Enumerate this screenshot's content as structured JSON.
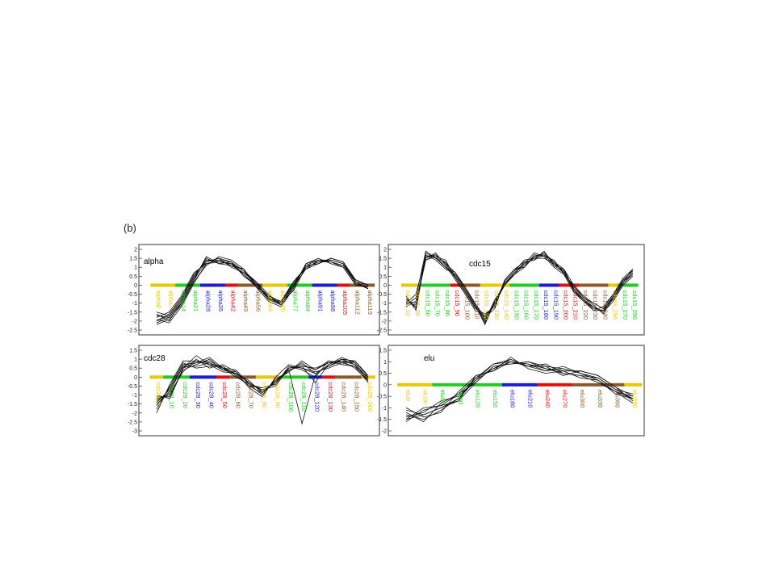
{
  "figure_label": "(b)",
  "chart_data": [
    {
      "type": "line",
      "title": "alpha",
      "ylim": [
        -2.5,
        2
      ],
      "yticks": [
        2,
        1.5,
        1,
        0.5,
        0,
        -0.5,
        -1,
        -1.5,
        -2,
        -2.5
      ],
      "categories": [
        "alpha0",
        "alpha7",
        "alpha14",
        "alpha21",
        "alpha28",
        "alpha35",
        "alpha42",
        "alpha49",
        "alpha56",
        "alpha63",
        "alpha70",
        "alpha77",
        "alpha84",
        "alpha91",
        "alpha98",
        "alpha105",
        "alpha112",
        "alpha119"
      ],
      "category_colors": [
        "#e8c800",
        "#e8c800",
        "#22cc22",
        "#22cc22",
        "#1c1cd0",
        "#1c1cd0",
        "#e01010",
        "#8b5a2b",
        "#8b5a2b",
        "#e8c800",
        "#e8c800",
        "#22cc22",
        "#22cc22",
        "#1c1cd0",
        "#1c1cd0",
        "#e01010",
        "#8b5a2b",
        "#8b5a2b"
      ],
      "series": [
        {
          "values": [
            -1.6,
            -2.0,
            -1.0,
            0.3,
            1.3,
            1.5,
            1.3,
            0.8,
            0.2,
            -0.7,
            -1.0,
            -0.3,
            1.0,
            1.3,
            1.4,
            1.2,
            0.1,
            -0.1
          ]
        },
        {
          "values": [
            -2.0,
            -1.7,
            -0.8,
            0.5,
            1.4,
            1.3,
            1.2,
            0.6,
            0.0,
            -0.8,
            -1.1,
            0.0,
            1.1,
            1.4,
            1.3,
            1.1,
            0.3,
            0.0
          ]
        },
        {
          "values": [
            -1.8,
            -1.5,
            -0.6,
            0.7,
            1.2,
            1.4,
            1.1,
            0.7,
            0.1,
            -0.6,
            -0.9,
            0.2,
            0.9,
            1.2,
            1.5,
            1.3,
            0.2,
            -0.2
          ]
        },
        {
          "values": [
            -2.2,
            -1.9,
            -1.1,
            0.2,
            1.1,
            1.6,
            1.4,
            0.9,
            -0.1,
            -0.9,
            -1.2,
            -0.2,
            1.2,
            1.5,
            1.2,
            1.0,
            0.0,
            -0.1
          ]
        },
        {
          "values": [
            -1.7,
            -1.8,
            -0.9,
            0.4,
            1.5,
            1.2,
            1.3,
            0.5,
            0.0,
            -0.7,
            -1.0,
            0.1,
            1.0,
            1.3,
            1.4,
            1.2,
            0.2,
            0.0
          ]
        },
        {
          "values": [
            -2.0,
            -1.6,
            -0.7,
            0.6,
            1.3,
            1.5,
            1.0,
            0.7,
            0.2,
            -0.5,
            -1.1,
            -0.1,
            0.9,
            1.4,
            1.3,
            1.1,
            0.1,
            -0.2
          ]
        },
        {
          "values": [
            -1.9,
            -2.1,
            -1.2,
            0.1,
            1.2,
            1.3,
            1.2,
            0.8,
            0.1,
            -0.8,
            -0.9,
            0.0,
            1.1,
            1.2,
            1.5,
            1.3,
            0.3,
            0.0
          ]
        },
        {
          "values": [
            -1.5,
            -1.7,
            -0.8,
            0.5,
            1.4,
            1.4,
            1.3,
            0.6,
            -0.1,
            -0.6,
            -1.0,
            0.2,
            1.0,
            1.3,
            1.3,
            1.0,
            0.0,
            -0.1
          ]
        },
        {
          "values": [
            -2.1,
            -1.8,
            -1.0,
            0.3,
            1.6,
            1.2,
            1.1,
            0.9,
            0.0,
            -0.7,
            -1.1,
            -0.1,
            1.2,
            1.4,
            1.4,
            1.2,
            0.2,
            -0.2
          ]
        }
      ]
    },
    {
      "type": "line",
      "title": "cdc15",
      "ylim": [
        -2.5,
        2
      ],
      "yticks": [
        2,
        1.5,
        1,
        0.5,
        0,
        -0.5,
        -1,
        -1.5,
        -2,
        -2.5
      ],
      "categories": [
        "cdc15_10",
        "cdc15_30",
        "cdc15_50",
        "cdc15_70",
        "cdc15_80",
        "cdc15_90",
        "cdc15_100",
        "cdc15_110",
        "cdc15_120",
        "cdc15_130",
        "cdc15_140",
        "cdc15_150",
        "cdc15_160",
        "cdc15_170",
        "cdc15_180",
        "cdc15_190",
        "cdc15_200",
        "cdc15_210",
        "cdc15_220",
        "cdc15_230",
        "cdc15_240",
        "cdc15_250",
        "cdc15_270",
        "cdc15_290"
      ],
      "category_colors": [
        "#e8c800",
        "#e8c800",
        "#22cc22",
        "#22cc22",
        "#22cc22",
        "#e01010",
        "#8b5a2b",
        "#8b5a2b",
        "#e8c800",
        "#e8c800",
        "#e8c800",
        "#22cc22",
        "#22cc22",
        "#22cc22",
        "#1c1cd0",
        "#1c1cd0",
        "#e01010",
        "#e01010",
        "#8b5a2b",
        "#8b5a2b",
        "#8b5a2b",
        "#e8c800",
        "#22cc22",
        "#22cc22"
      ],
      "series": [
        {
          "values": [
            -0.8,
            -1.2,
            1.8,
            1.5,
            1.0,
            0.5,
            -0.3,
            -1.2,
            -1.8,
            -1.0,
            0.2,
            0.8,
            1.2,
            1.5,
            1.8,
            1.2,
            0.8,
            -0.2,
            -0.8,
            -1.2,
            -1.5,
            -0.6,
            0.3,
            0.8
          ]
        },
        {
          "values": [
            -1.0,
            -0.5,
            1.6,
            1.7,
            1.2,
            0.7,
            -0.1,
            -1.0,
            -2.0,
            -0.8,
            0.0,
            0.6,
            1.0,
            1.7,
            1.6,
            1.4,
            0.6,
            0.0,
            -0.6,
            -1.0,
            -1.3,
            -0.8,
            0.1,
            0.6
          ]
        },
        {
          "values": [
            -1.2,
            -0.9,
            1.4,
            1.6,
            1.4,
            0.4,
            -0.4,
            -1.3,
            -1.6,
            -1.2,
            0.3,
            0.9,
            1.3,
            1.4,
            1.9,
            1.1,
            0.9,
            -0.3,
            -0.9,
            -1.4,
            -1.2,
            -0.5,
            0.4,
            0.9
          ]
        },
        {
          "values": [
            -0.6,
            -1.4,
            1.7,
            1.4,
            0.9,
            0.6,
            -0.2,
            -1.1,
            -2.2,
            -0.9,
            0.1,
            0.7,
            1.1,
            1.6,
            1.7,
            1.3,
            0.7,
            -0.1,
            -0.7,
            -1.1,
            -1.6,
            -0.7,
            0.2,
            0.7
          ]
        },
        {
          "values": [
            -0.9,
            -1.0,
            1.5,
            1.8,
            1.1,
            0.3,
            -0.5,
            -1.4,
            -1.7,
            -1.1,
            0.2,
            0.8,
            1.4,
            1.5,
            1.5,
            1.2,
            0.8,
            -0.2,
            -0.8,
            -1.3,
            -1.4,
            -0.6,
            0.3,
            0.8
          ]
        },
        {
          "values": [
            -1.1,
            -0.7,
            1.9,
            1.5,
            1.3,
            0.5,
            -0.3,
            -1.2,
            -1.9,
            -1.0,
            0.0,
            0.7,
            1.2,
            1.8,
            1.6,
            1.0,
            0.6,
            -0.4,
            -0.9,
            -1.2,
            -1.5,
            -0.9,
            0.0,
            0.5
          ]
        },
        {
          "values": [
            -0.7,
            -1.3,
            1.6,
            1.6,
            1.0,
            0.7,
            -0.2,
            -1.0,
            -1.8,
            -1.3,
            0.3,
            0.9,
            1.0,
            1.6,
            1.8,
            1.3,
            0.9,
            0.0,
            -0.7,
            -1.0,
            -1.3,
            -0.5,
            0.2,
            0.9
          ]
        },
        {
          "values": [
            -1.0,
            -1.1,
            1.4,
            1.7,
            1.2,
            0.4,
            -0.4,
            -1.1,
            -2.1,
            -0.9,
            0.1,
            0.6,
            1.3,
            1.4,
            1.7,
            1.1,
            0.7,
            -0.3,
            -0.8,
            -1.4,
            -1.4,
            -0.7,
            0.1,
            0.7
          ]
        }
      ]
    },
    {
      "type": "line",
      "title": "cdc28",
      "ylim": [
        -3,
        1.5
      ],
      "yticks": [
        1.5,
        1,
        0.5,
        0,
        -0.5,
        -1,
        -1.5,
        -2,
        -2.5,
        -3
      ],
      "categories": [
        "cdc28_0",
        "cdc28_10",
        "cdc28_20",
        "cdc28_30",
        "cdc28_40",
        "cdc28_50",
        "cdc28_60",
        "cdc28_70",
        "cdc28_80",
        "cdc28_90",
        "cdc28_100",
        "cdc28_110",
        "cdc28_120",
        "cdc28_130",
        "cdc28_140",
        "cdc28_150",
        "cdc28_160"
      ],
      "category_colors": [
        "#e8c800",
        "#22cc22",
        "#22cc22",
        "#1c1cd0",
        "#1c1cd0",
        "#e01010",
        "#8b5a2b",
        "#8b5a2b",
        "#e8c800",
        "#e8c800",
        "#22cc22",
        "#22cc22",
        "#1c1cd0",
        "#e01010",
        "#8b5a2b",
        "#8b5a2b",
        "#e8c800"
      ],
      "series": [
        {
          "values": [
            -1.5,
            -0.8,
            0.6,
            0.9,
            0.8,
            0.5,
            0.2,
            -0.3,
            -0.8,
            -0.3,
            0.5,
            0.6,
            0.5,
            0.8,
            0.9,
            0.7,
            -0.2
          ]
        },
        {
          "values": [
            -1.2,
            -1.0,
            0.4,
            0.7,
            1.0,
            0.4,
            0.3,
            -0.4,
            -1.0,
            -0.1,
            0.3,
            0.8,
            0.2,
            0.6,
            1.0,
            0.9,
            0.0
          ]
        },
        {
          "values": [
            -1.8,
            -0.5,
            0.8,
            0.5,
            0.6,
            0.6,
            0.1,
            -0.5,
            -0.6,
            -0.4,
            0.6,
            0.4,
            0.0,
            0.9,
            0.8,
            0.6,
            -0.3
          ]
        },
        {
          "values": [
            -1.0,
            -1.2,
            0.5,
            1.2,
            0.7,
            0.3,
            0.2,
            -0.2,
            -0.9,
            -0.2,
            0.4,
            -2.6,
            0.1,
            0.7,
            1.1,
            0.8,
            -0.1
          ]
        },
        {
          "values": [
            -1.6,
            -0.6,
            0.7,
            0.8,
            0.9,
            0.5,
            0.0,
            -0.4,
            -0.7,
            -0.5,
            0.5,
            0.7,
            0.4,
            0.8,
            0.9,
            0.5,
            -0.2
          ]
        },
        {
          "values": [
            -1.3,
            -0.9,
            0.3,
            1.0,
            0.5,
            0.7,
            0.3,
            -0.6,
            -1.1,
            0.0,
            0.7,
            0.5,
            0.3,
            0.5,
            0.8,
            0.9,
            0.1
          ]
        },
        {
          "values": [
            -1.4,
            -0.7,
            0.6,
            0.6,
            0.8,
            0.4,
            0.2,
            -0.3,
            -0.8,
            -0.3,
            0.4,
            0.6,
            -0.3,
            0.7,
            1.0,
            0.7,
            -0.2
          ]
        },
        {
          "values": [
            -2.0,
            -0.4,
            0.9,
            0.9,
            0.7,
            0.6,
            0.1,
            -0.5,
            -0.9,
            -0.2,
            0.3,
            0.9,
            0.4,
            0.9,
            0.7,
            0.6,
            0.0
          ]
        },
        {
          "values": [
            -1.1,
            -1.1,
            0.5,
            0.8,
            1.1,
            0.5,
            0.4,
            -0.4,
            -0.6,
            -0.4,
            0.6,
            0.5,
            0.2,
            0.6,
            0.9,
            0.8,
            -0.1
          ]
        }
      ]
    },
    {
      "type": "line",
      "title": "elu",
      "ylim": [
        -2,
        1.5
      ],
      "yticks": [
        1.5,
        1,
        0.5,
        0,
        -0.5,
        -1,
        -1.5,
        -2
      ],
      "categories": [
        "elu0",
        "elu30",
        "elu60",
        "elu90",
        "elu120",
        "elu150",
        "elu180",
        "elu210",
        "elu240",
        "elu270",
        "elu300",
        "elu330",
        "elu360",
        "elu390"
      ],
      "category_colors": [
        "#e8c800",
        "#e8c800",
        "#22cc22",
        "#22cc22",
        "#22cc22",
        "#22cc22",
        "#1c1cd0",
        "#1c1cd0",
        "#e01010",
        "#e01010",
        "#8b5a2b",
        "#8b5a2b",
        "#8b5a2b",
        "#e8c800"
      ],
      "series": [
        {
          "values": [
            -1.5,
            -1.3,
            -1.0,
            -0.6,
            0.2,
            0.7,
            1.0,
            0.9,
            0.7,
            0.5,
            0.4,
            0.3,
            -0.2,
            -0.6
          ]
        },
        {
          "values": [
            -1.2,
            -1.6,
            -0.8,
            -0.4,
            0.3,
            0.9,
            1.1,
            0.8,
            0.6,
            0.7,
            0.5,
            0.2,
            -0.3,
            -0.5
          ]
        },
        {
          "values": [
            -1.6,
            -1.1,
            -0.9,
            -0.7,
            0.1,
            0.8,
            0.9,
            1.0,
            0.8,
            0.4,
            0.6,
            0.4,
            -0.1,
            -0.7
          ]
        },
        {
          "values": [
            -1.0,
            -1.4,
            -1.2,
            -0.3,
            0.4,
            0.6,
            1.2,
            0.7,
            0.5,
            0.6,
            0.3,
            0.2,
            -0.4,
            -0.6
          ]
        },
        {
          "values": [
            -1.4,
            -1.2,
            -0.7,
            -0.5,
            0.2,
            0.9,
            1.0,
            0.9,
            0.6,
            0.8,
            0.5,
            0.3,
            -0.2,
            -0.4
          ]
        },
        {
          "values": [
            -1.3,
            -1.5,
            -1.1,
            -0.6,
            0.3,
            0.7,
            1.1,
            0.8,
            0.9,
            0.5,
            0.4,
            0.1,
            -0.3,
            -0.8
          ]
        },
        {
          "values": [
            -1.5,
            -1.0,
            -0.9,
            -0.4,
            0.1,
            0.8,
            0.9,
            1.0,
            0.7,
            0.6,
            0.6,
            0.4,
            -0.1,
            -0.5
          ]
        },
        {
          "values": [
            -1.1,
            -1.3,
            -1.0,
            -0.7,
            0.4,
            0.6,
            1.0,
            0.8,
            0.8,
            0.7,
            0.5,
            0.2,
            -0.3,
            -0.6
          ]
        }
      ]
    }
  ]
}
